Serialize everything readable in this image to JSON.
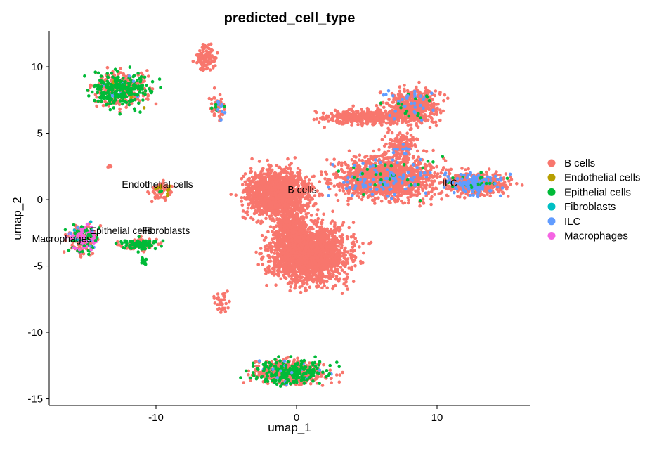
{
  "chart_data": {
    "type": "scatter",
    "title": "predicted_cell_type",
    "xlabel": "umap_1",
    "ylabel": "umap_2",
    "xlim": [
      -17.6,
      16.6
    ],
    "ylim": [
      -15.5,
      12.7
    ],
    "xticks": [
      -10,
      0,
      10
    ],
    "xtick_labels": [
      "-10",
      "0",
      "10"
    ],
    "yticks": [
      -15,
      -10,
      -5,
      0,
      5,
      10
    ],
    "ytick_labels": [
      "-15",
      "-10",
      "-5",
      "0",
      "5",
      "10"
    ],
    "grid": false,
    "legend_position": "right",
    "series": [
      {
        "name": "B cells",
        "color": "#F8766D"
      },
      {
        "name": "Endothelial cells",
        "color": "#B79F00"
      },
      {
        "name": "Epithelial cells",
        "color": "#00BA38"
      },
      {
        "name": "Fibroblasts",
        "color": "#00BFC4"
      },
      {
        "name": "ILC",
        "color": "#619CFF"
      },
      {
        "name": "Macrophages",
        "color": "#F564E3"
      }
    ],
    "clusters": [
      {
        "cx": -12.5,
        "cy": 8.3,
        "rx": 1.7,
        "ry": 1.1,
        "n": 520,
        "mix": [
          0.5,
          0.01,
          0.47,
          0,
          0.02,
          0
        ]
      },
      {
        "cx": -6.5,
        "cy": 10.7,
        "rx": 0.6,
        "ry": 0.8,
        "n": 120,
        "mix": [
          1,
          0,
          0,
          0,
          0,
          0
        ]
      },
      {
        "cx": -5.6,
        "cy": 7.0,
        "rx": 0.5,
        "ry": 0.9,
        "n": 60,
        "mix": [
          0.7,
          0,
          0.15,
          0,
          0.15,
          0
        ]
      },
      {
        "cx": -13.3,
        "cy": 2.5,
        "rx": 0.15,
        "ry": 0.15,
        "n": 6,
        "mix": [
          1,
          0,
          0,
          0,
          0,
          0
        ]
      },
      {
        "cx": -9.7,
        "cy": 0.6,
        "rx": 0.8,
        "ry": 0.6,
        "n": 70,
        "mix": [
          0.85,
          0.1,
          0.05,
          0,
          0,
          0
        ]
      },
      {
        "cx": -15.2,
        "cy": -2.9,
        "rx": 0.9,
        "ry": 0.9,
        "n": 260,
        "mix": [
          0.5,
          0,
          0.2,
          0.02,
          0.06,
          0.22
        ]
      },
      {
        "cx": -11.2,
        "cy": -3.4,
        "rx": 1.3,
        "ry": 0.35,
        "n": 140,
        "mix": [
          0.45,
          0,
          0.55,
          0,
          0,
          0
        ]
      },
      {
        "cx": -10.9,
        "cy": -4.6,
        "rx": 0.25,
        "ry": 0.25,
        "n": 15,
        "mix": [
          0,
          0,
          1,
          0,
          0,
          0
        ]
      },
      {
        "cx": -1.3,
        "cy": 0.4,
        "rx": 2.0,
        "ry": 1.6,
        "n": 1400,
        "mix": [
          1,
          0,
          0,
          0,
          0,
          0
        ]
      },
      {
        "cx": 0.9,
        "cy": -4.1,
        "rx": 2.5,
        "ry": 1.9,
        "n": 1900,
        "mix": [
          1,
          0,
          0,
          0,
          0,
          0
        ]
      },
      {
        "cx": -0.4,
        "cy": -2.2,
        "rx": 0.9,
        "ry": 1.3,
        "n": 350,
        "mix": [
          1,
          0,
          0,
          0,
          0,
          0
        ]
      },
      {
        "cx": -5.4,
        "cy": -7.8,
        "rx": 0.45,
        "ry": 0.7,
        "n": 40,
        "mix": [
          1,
          0,
          0,
          0,
          0,
          0
        ]
      },
      {
        "cx": -0.5,
        "cy": -13.0,
        "rx": 2.3,
        "ry": 0.8,
        "n": 650,
        "mix": [
          0.65,
          0,
          0.33,
          0,
          0.02,
          0
        ]
      },
      {
        "cx": 6.4,
        "cy": 1.6,
        "rx": 3.3,
        "ry": 1.4,
        "n": 1400,
        "mix": [
          0.92,
          0,
          0.02,
          0,
          0.06,
          0
        ]
      },
      {
        "cx": 12.8,
        "cy": 1.2,
        "rx": 1.9,
        "ry": 0.75,
        "n": 600,
        "mix": [
          0.78,
          0,
          0.03,
          0,
          0.19,
          0
        ]
      },
      {
        "cx": 8.2,
        "cy": 7.0,
        "rx": 1.6,
        "ry": 1.2,
        "n": 550,
        "mix": [
          0.93,
          0,
          0.02,
          0,
          0.05,
          0
        ]
      },
      {
        "cx": 5.0,
        "cy": 6.2,
        "rx": 2.7,
        "ry": 0.5,
        "n": 380,
        "mix": [
          1,
          0,
          0,
          0,
          0,
          0
        ]
      },
      {
        "cx": 7.5,
        "cy": 4.0,
        "rx": 1.0,
        "ry": 0.9,
        "n": 160,
        "mix": [
          0.95,
          0,
          0,
          0,
          0.05,
          0
        ]
      }
    ],
    "annotations": [
      {
        "text": "Endothelial cells",
        "x": -9.9,
        "y": 0.9
      },
      {
        "text": "B cells",
        "x": 0.4,
        "y": 0.5
      },
      {
        "text": "ILC",
        "x": 10.9,
        "y": 1.0
      },
      {
        "text": "Epithelial cells",
        "x": -12.5,
        "y": -2.6
      },
      {
        "text": "Fibroblasts",
        "x": -9.3,
        "y": -2.6
      },
      {
        "text": "Macrophages",
        "x": -16.7,
        "y": -3.2
      }
    ]
  }
}
